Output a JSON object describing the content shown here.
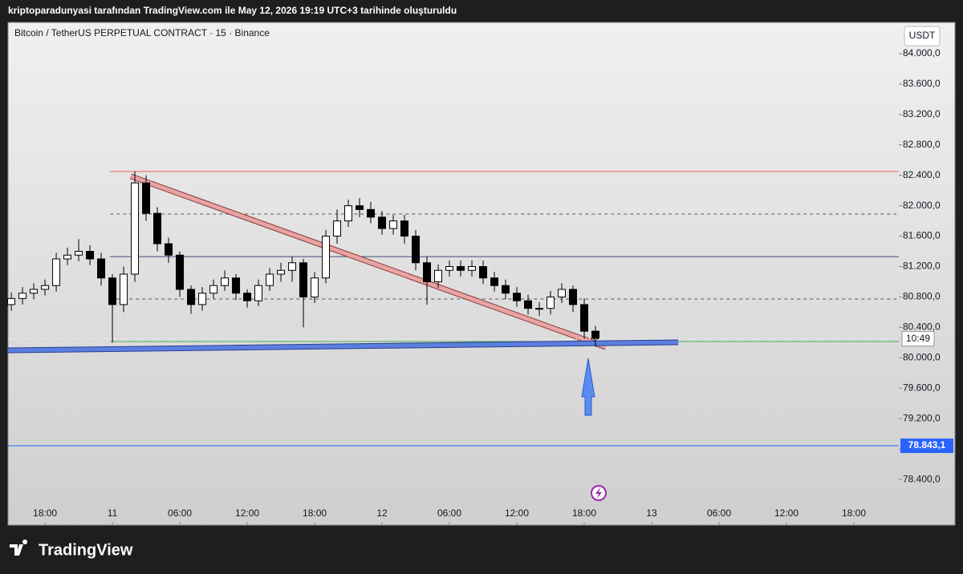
{
  "chart_data": {
    "type": "candlestick",
    "attribution": "kriptoparadunyasi tarafından TradingView.com ile May 12, 2026 19:19 UTC+3 tarihinde oluşturuldu",
    "title": "Bitcoin / TetherUS PERPETUAL CONTRACT · 15 · Binance",
    "currency": "USDT",
    "countdown": "10:49",
    "brand": "TradingView",
    "x": [
      15,
      16,
      17,
      18,
      19,
      20,
      21,
      22,
      23,
      24,
      25,
      26,
      27,
      28,
      29,
      30,
      31,
      32,
      33,
      34,
      35,
      36,
      37,
      38,
      39,
      40,
      41,
      42,
      43,
      44,
      45,
      46,
      47,
      48,
      49,
      50,
      51,
      52,
      53,
      54,
      55,
      56,
      57,
      58,
      59,
      60,
      61,
      62,
      63,
      64,
      65,
      66,
      67
    ],
    "open": [
      80700,
      80780,
      80850,
      80900,
      80950,
      81300,
      81350,
      81400,
      81300,
      81050,
      80700,
      81100,
      82300,
      81900,
      81500,
      81350,
      80900,
      80700,
      80850,
      80950,
      81050,
      80850,
      80750,
      80950,
      81100,
      81150,
      81250,
      80800,
      81050,
      81600,
      81800,
      82000,
      81950,
      81850,
      81700,
      81800,
      81600,
      81250,
      81000,
      81150,
      81200,
      81150,
      81200,
      81050,
      80950,
      80850,
      80750,
      80650,
      80650,
      80800,
      80900,
      80700,
      80350
    ],
    "high": [
      80860,
      80930,
      80980,
      81030,
      81380,
      81450,
      81560,
      81480,
      81380,
      81100,
      81200,
      82450,
      82400,
      81980,
      81580,
      81400,
      80950,
      80930,
      81030,
      81150,
      81100,
      80900,
      81030,
      81180,
      81250,
      81330,
      81300,
      81130,
      81680,
      81950,
      82080,
      82100,
      82050,
      81930,
      81880,
      81880,
      81680,
      81330,
      81230,
      81280,
      81280,
      81280,
      81280,
      81130,
      81030,
      80930,
      80830,
      80730,
      80880,
      80980,
      80950,
      80780,
      80420
    ],
    "low": [
      80620,
      80700,
      80770,
      80820,
      80870,
      81220,
      81270,
      81220,
      80950,
      80200,
      80600,
      81000,
      81800,
      81400,
      81250,
      80800,
      80580,
      80620,
      80780,
      80880,
      80760,
      80660,
      80680,
      80880,
      81000,
      81000,
      80400,
      80720,
      80980,
      81500,
      81720,
      81850,
      81770,
      81620,
      81620,
      81500,
      81150,
      80700,
      80920,
      81070,
      81070,
      81070,
      80970,
      80870,
      80770,
      80670,
      80570,
      80550,
      80570,
      80720,
      80600,
      80250,
      80150
    ],
    "close": [
      80780,
      80850,
      80900,
      80950,
      81300,
      81350,
      81400,
      81300,
      81050,
      80700,
      81100,
      82300,
      81900,
      81500,
      81350,
      80900,
      80700,
      80850,
      80950,
      81050,
      80850,
      80750,
      80950,
      81100,
      81150,
      81250,
      80800,
      81050,
      81600,
      81800,
      82000,
      81950,
      81850,
      81700,
      81800,
      81600,
      81250,
      81000,
      81150,
      81200,
      81150,
      81200,
      81050,
      80950,
      80850,
      80750,
      80650,
      80650,
      80800,
      80900,
      80700,
      80350,
      80250
    ],
    "up_color": "#ffffff",
    "down_color": "#000000",
    "xlim": [
      14.71,
      94
    ],
    "ylim": [
      77800,
      84410
    ],
    "xticks": [
      {
        "value": 18,
        "label": "18:00"
      },
      {
        "value": 24,
        "label": "11"
      },
      {
        "value": 30,
        "label": "06:00"
      },
      {
        "value": 36,
        "label": "12:00"
      },
      {
        "value": 42,
        "label": "18:00"
      },
      {
        "value": 48,
        "label": "12"
      },
      {
        "value": 54,
        "label": "06:00"
      },
      {
        "value": 60,
        "label": "12:00"
      },
      {
        "value": 66,
        "label": "18:00"
      },
      {
        "value": 72,
        "label": "13"
      },
      {
        "value": 78,
        "label": "06:00"
      },
      {
        "value": 84,
        "label": "12:00"
      },
      {
        "value": 90,
        "label": "18:00"
      }
    ],
    "yticks": [
      {
        "value": 84000,
        "label": "84.000,0"
      },
      {
        "value": 83600,
        "label": "83.600,0"
      },
      {
        "value": 83200,
        "label": "83.200,0"
      },
      {
        "value": 82800,
        "label": "82.800,0"
      },
      {
        "value": 82400,
        "label": "82.400,0"
      },
      {
        "value": 82000,
        "label": "82.000,0"
      },
      {
        "value": 81600,
        "label": "81.600,0"
      },
      {
        "value": 81200,
        "label": "81.200,0"
      },
      {
        "value": 80800,
        "label": "80.800,0"
      },
      {
        "value": 80400,
        "label": "80.400,0"
      },
      {
        "value": 80000,
        "label": "80.000,0"
      },
      {
        "value": 79600,
        "label": "79.600,0"
      },
      {
        "value": 79200,
        "label": "79.200,0"
      },
      {
        "value": 78800,
        "label": "78.800,0"
      },
      {
        "value": 78400,
        "label": "78.400,0"
      }
    ],
    "levels": [
      {
        "value": 82450,
        "from_x": 23.8,
        "color": "#f05a5a",
        "style": "solid"
      },
      {
        "value": 81890,
        "from_x": 23.8,
        "color": "#555555",
        "style": "dashed"
      },
      {
        "value": 81330,
        "from_x": 23.8,
        "color": "#3f4a7a",
        "style": "solid"
      },
      {
        "value": 80773,
        "from_x": 23.8,
        "color": "#555555",
        "style": "dashed"
      },
      {
        "value": 80214,
        "from_x": 23.8,
        "color": "#4caf50",
        "style": "solid"
      },
      {
        "value": 78843.1,
        "label": "78.843,1",
        "from_x": 14.71,
        "color": "#2962ff",
        "style": "solid"
      }
    ],
    "trendlines": [
      {
        "x": [
          25.64,
          67.93
        ],
        "y": [
          82387,
          80140
        ],
        "color": "#e8a3a3",
        "edge": "#8a3a3a"
      },
      {
        "x": [
          14.71,
          74.36
        ],
        "y": [
          80098,
          80204
        ],
        "color": "#5b7fe0",
        "edge": "#2c3f8f"
      }
    ]
  }
}
